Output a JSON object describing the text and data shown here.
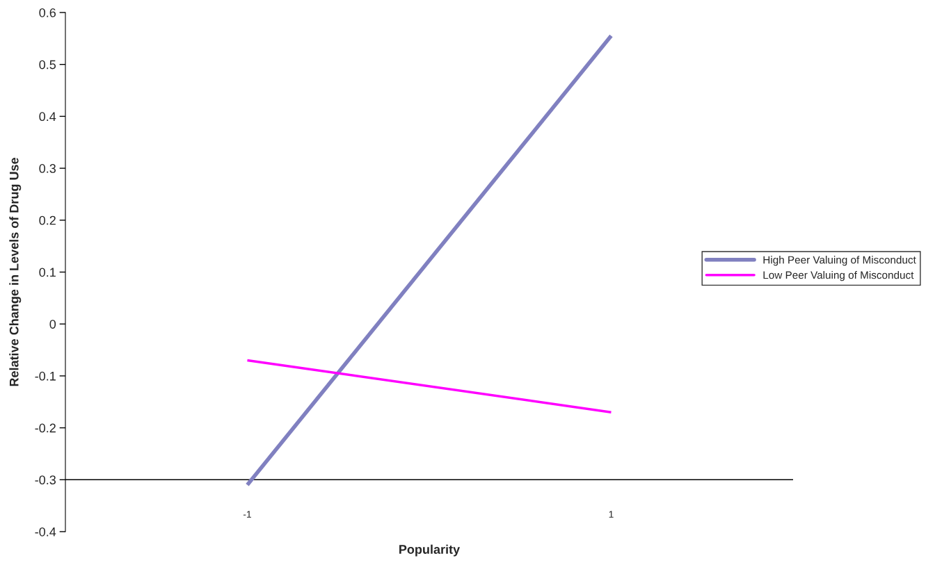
{
  "chart_data": {
    "type": "line",
    "xlabel": "Popularity",
    "ylabel": "Relative Change in Levels of Drug Use",
    "x": [
      -1,
      1
    ],
    "series": [
      {
        "name": "High Peer Valuing of Misconduct",
        "color": "#8080c0",
        "values": [
          -0.31,
          0.555
        ]
      },
      {
        "name": "Low Peer Valuing of Misconduct",
        "color": "#ff00ff",
        "values": [
          -0.07,
          -0.17
        ]
      }
    ],
    "xlim": [
      -2,
      2
    ],
    "xticks": [
      -1,
      1
    ],
    "ylim": [
      -0.4,
      0.6
    ],
    "yticks": [
      -0.4,
      -0.3,
      -0.2,
      -0.1,
      0,
      0.1,
      0.2,
      0.3,
      0.4,
      0.5,
      0.6
    ],
    "ref_lines": [
      {
        "axis": "y",
        "value": -0.3,
        "color": "#000000"
      }
    ],
    "grid": false,
    "legend": "right",
    "marker": "none",
    "line_style": "solid"
  }
}
